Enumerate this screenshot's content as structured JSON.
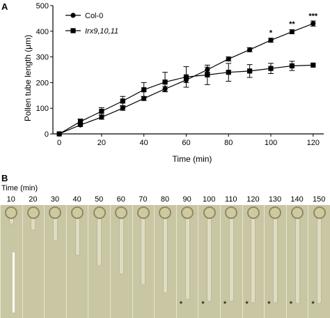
{
  "panel_a_label": "A",
  "panel_b_label": "B",
  "chart_data": {
    "type": "line",
    "xlabel": "Time (min)",
    "ylabel": "Pollen tube length (μm)",
    "xlim": [
      -3,
      125
    ],
    "ylim": [
      0,
      500
    ],
    "xticks": [
      0,
      20,
      40,
      60,
      80,
      100,
      120
    ],
    "yticks": [
      0,
      100,
      200,
      300,
      400,
      500
    ],
    "legend_position": "top-left",
    "grid": false,
    "series": [
      {
        "name": "Col-0",
        "marker": "circle",
        "color": "#000000",
        "x": [
          0,
          10,
          20,
          30,
          40,
          50,
          60,
          70,
          80,
          90,
          100,
          110,
          120
        ],
        "y": [
          0,
          35,
          65,
          100,
          138,
          175,
          210,
          250,
          292,
          328,
          365,
          398,
          430
        ],
        "err": [
          0,
          6,
          8,
          8,
          8,
          10,
          10,
          10,
          8,
          8,
          8,
          8,
          10
        ]
      },
      {
        "name": "Irx9,10,11",
        "marker": "square",
        "color": "#000000",
        "x": [
          0,
          10,
          20,
          30,
          40,
          50,
          60,
          70,
          80,
          90,
          100,
          110,
          120
        ],
        "y": [
          0,
          48,
          88,
          128,
          172,
          202,
          222,
          230,
          240,
          245,
          255,
          265,
          268
        ],
        "err": [
          0,
          10,
          14,
          18,
          28,
          38,
          40,
          38,
          35,
          25,
          20,
          18,
          0
        ]
      }
    ],
    "annotations": [
      {
        "text": "*",
        "x": 100,
        "y": 385
      },
      {
        "text": "**",
        "x": 110,
        "y": 418
      },
      {
        "text": "***",
        "x": 120,
        "y": 450
      }
    ]
  },
  "panel_b": {
    "time_caption": "Time (min)",
    "frames": [
      {
        "time": "10",
        "length": 0.12,
        "star": false
      },
      {
        "time": "20",
        "length": 0.18,
        "star": false
      },
      {
        "time": "30",
        "length": 0.28,
        "star": false
      },
      {
        "time": "40",
        "length": 0.42,
        "star": false
      },
      {
        "time": "50",
        "length": 0.52,
        "star": false
      },
      {
        "time": "60",
        "length": 0.6,
        "star": false
      },
      {
        "time": "70",
        "length": 0.7,
        "star": false
      },
      {
        "time": "80",
        "length": 0.78,
        "star": false
      },
      {
        "time": "90",
        "length": 0.84,
        "star": true
      },
      {
        "time": "100",
        "length": 0.86,
        "star": true
      },
      {
        "time": "110",
        "length": 0.86,
        "star": true
      },
      {
        "time": "120",
        "length": 0.87,
        "star": true
      },
      {
        "time": "130",
        "length": 0.87,
        "star": true
      },
      {
        "time": "140",
        "length": 0.88,
        "star": true
      },
      {
        "time": "150",
        "length": 0.88,
        "star": true
      }
    ],
    "star_text": "*"
  }
}
